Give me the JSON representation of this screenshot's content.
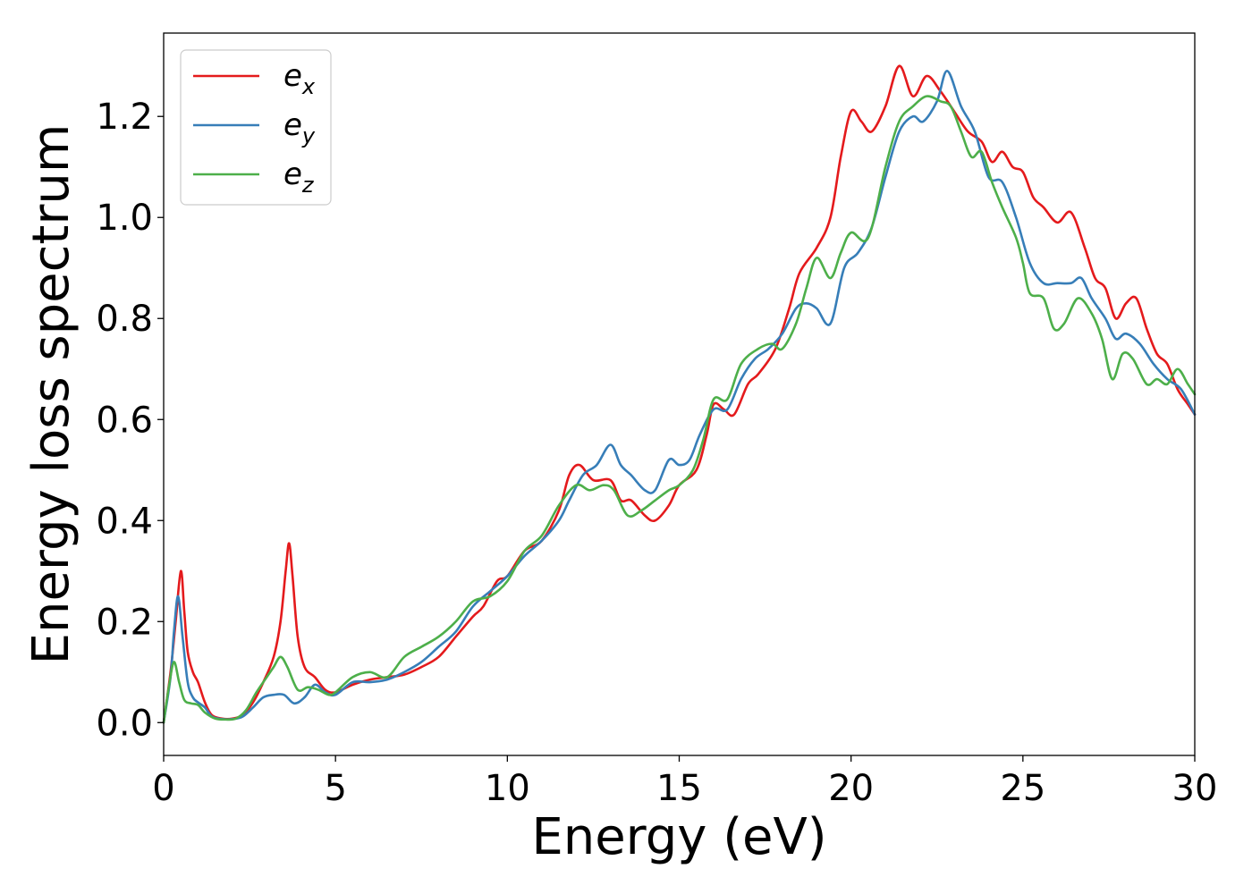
{
  "chart_data": {
    "type": "line",
    "title": "",
    "xlabel": "Energy (eV)",
    "ylabel": "Energy loss spectrum",
    "xlim": [
      0,
      30
    ],
    "ylim": [
      -0.065,
      1.365
    ],
    "xticks": [
      0,
      5,
      10,
      15,
      20,
      25,
      30
    ],
    "xtick_labels": [
      "0",
      "5",
      "10",
      "15",
      "20",
      "25",
      "30"
    ],
    "yticks": [
      0.0,
      0.2,
      0.4,
      0.6,
      0.8,
      1.0,
      1.2
    ],
    "ytick_labels": [
      "0.0",
      "0.2",
      "0.4",
      "0.6",
      "0.8",
      "1.0",
      "1.2"
    ],
    "grid": false,
    "legend_position": "top-left",
    "series": [
      {
        "name": "e_x",
        "label_base": "e",
        "label_sub": "x",
        "color": "#e41a1c",
        "points": [
          [
            0,
            0.0
          ],
          [
            0.2,
            0.1
          ],
          [
            0.35,
            0.2
          ],
          [
            0.5,
            0.3
          ],
          [
            0.6,
            0.22
          ],
          [
            0.7,
            0.14
          ],
          [
            0.85,
            0.1
          ],
          [
            1.0,
            0.08
          ],
          [
            1.2,
            0.04
          ],
          [
            1.4,
            0.015
          ],
          [
            1.7,
            0.008
          ],
          [
            2.0,
            0.008
          ],
          [
            2.3,
            0.015
          ],
          [
            2.6,
            0.04
          ],
          [
            2.9,
            0.08
          ],
          [
            3.2,
            0.13
          ],
          [
            3.4,
            0.2
          ],
          [
            3.55,
            0.3
          ],
          [
            3.65,
            0.355
          ],
          [
            3.75,
            0.29
          ],
          [
            3.9,
            0.17
          ],
          [
            4.1,
            0.11
          ],
          [
            4.4,
            0.09
          ],
          [
            4.7,
            0.065
          ],
          [
            5.0,
            0.06
          ],
          [
            5.5,
            0.075
          ],
          [
            6.0,
            0.085
          ],
          [
            6.5,
            0.09
          ],
          [
            7.0,
            0.095
          ],
          [
            7.5,
            0.11
          ],
          [
            8.0,
            0.13
          ],
          [
            8.5,
            0.17
          ],
          [
            9.0,
            0.21
          ],
          [
            9.3,
            0.23
          ],
          [
            9.7,
            0.28
          ],
          [
            10.0,
            0.29
          ],
          [
            10.5,
            0.34
          ],
          [
            11.0,
            0.36
          ],
          [
            11.5,
            0.42
          ],
          [
            11.8,
            0.49
          ],
          [
            12.1,
            0.51
          ],
          [
            12.5,
            0.48
          ],
          [
            13.0,
            0.48
          ],
          [
            13.3,
            0.44
          ],
          [
            13.6,
            0.44
          ],
          [
            14.0,
            0.41
          ],
          [
            14.3,
            0.4
          ],
          [
            14.7,
            0.43
          ],
          [
            15.0,
            0.47
          ],
          [
            15.5,
            0.5
          ],
          [
            15.8,
            0.57
          ],
          [
            16.0,
            0.63
          ],
          [
            16.3,
            0.62
          ],
          [
            16.6,
            0.61
          ],
          [
            17.0,
            0.67
          ],
          [
            17.3,
            0.69
          ],
          [
            17.8,
            0.74
          ],
          [
            18.2,
            0.82
          ],
          [
            18.5,
            0.89
          ],
          [
            19.0,
            0.94
          ],
          [
            19.4,
            1.0
          ],
          [
            19.7,
            1.12
          ],
          [
            20.0,
            1.21
          ],
          [
            20.3,
            1.19
          ],
          [
            20.6,
            1.17
          ],
          [
            21.0,
            1.22
          ],
          [
            21.4,
            1.3
          ],
          [
            21.8,
            1.24
          ],
          [
            22.2,
            1.28
          ],
          [
            22.6,
            1.25
          ],
          [
            23.0,
            1.21
          ],
          [
            23.4,
            1.17
          ],
          [
            23.8,
            1.15
          ],
          [
            24.1,
            1.11
          ],
          [
            24.4,
            1.13
          ],
          [
            24.7,
            1.1
          ],
          [
            25.0,
            1.09
          ],
          [
            25.3,
            1.04
          ],
          [
            25.6,
            1.02
          ],
          [
            26.0,
            0.99
          ],
          [
            26.4,
            1.01
          ],
          [
            26.8,
            0.94
          ],
          [
            27.1,
            0.88
          ],
          [
            27.4,
            0.86
          ],
          [
            27.7,
            0.8
          ],
          [
            28.0,
            0.83
          ],
          [
            28.3,
            0.84
          ],
          [
            28.6,
            0.78
          ],
          [
            28.9,
            0.73
          ],
          [
            29.2,
            0.71
          ],
          [
            29.5,
            0.66
          ],
          [
            29.8,
            0.63
          ],
          [
            30.0,
            0.61
          ]
        ]
      },
      {
        "name": "e_y",
        "label_base": "e",
        "label_sub": "y",
        "color": "#377eb8",
        "points": [
          [
            0,
            0.0
          ],
          [
            0.2,
            0.09
          ],
          [
            0.3,
            0.18
          ],
          [
            0.42,
            0.25
          ],
          [
            0.55,
            0.17
          ],
          [
            0.7,
            0.08
          ],
          [
            0.85,
            0.05
          ],
          [
            1.0,
            0.04
          ],
          [
            1.2,
            0.03
          ],
          [
            1.4,
            0.012
          ],
          [
            1.7,
            0.007
          ],
          [
            2.0,
            0.007
          ],
          [
            2.3,
            0.012
          ],
          [
            2.6,
            0.03
          ],
          [
            2.9,
            0.05
          ],
          [
            3.2,
            0.055
          ],
          [
            3.5,
            0.055
          ],
          [
            3.8,
            0.038
          ],
          [
            4.1,
            0.05
          ],
          [
            4.4,
            0.075
          ],
          [
            4.7,
            0.06
          ],
          [
            5.0,
            0.055
          ],
          [
            5.5,
            0.08
          ],
          [
            6.0,
            0.08
          ],
          [
            6.5,
            0.085
          ],
          [
            7.0,
            0.1
          ],
          [
            7.5,
            0.12
          ],
          [
            8.0,
            0.15
          ],
          [
            8.5,
            0.18
          ],
          [
            9.0,
            0.23
          ],
          [
            9.5,
            0.26
          ],
          [
            10.0,
            0.29
          ],
          [
            10.5,
            0.33
          ],
          [
            11.0,
            0.36
          ],
          [
            11.5,
            0.4
          ],
          [
            11.8,
            0.44
          ],
          [
            12.2,
            0.49
          ],
          [
            12.6,
            0.51
          ],
          [
            13.0,
            0.55
          ],
          [
            13.3,
            0.51
          ],
          [
            13.6,
            0.49
          ],
          [
            14.0,
            0.46
          ],
          [
            14.3,
            0.46
          ],
          [
            14.7,
            0.52
          ],
          [
            15.0,
            0.51
          ],
          [
            15.3,
            0.52
          ],
          [
            15.6,
            0.57
          ],
          [
            16.0,
            0.62
          ],
          [
            16.4,
            0.62
          ],
          [
            16.8,
            0.68
          ],
          [
            17.2,
            0.72
          ],
          [
            17.6,
            0.74
          ],
          [
            18.0,
            0.77
          ],
          [
            18.4,
            0.82
          ],
          [
            18.7,
            0.83
          ],
          [
            19.0,
            0.82
          ],
          [
            19.4,
            0.79
          ],
          [
            19.8,
            0.9
          ],
          [
            20.2,
            0.93
          ],
          [
            20.6,
            0.98
          ],
          [
            21.0,
            1.08
          ],
          [
            21.4,
            1.17
          ],
          [
            21.8,
            1.2
          ],
          [
            22.1,
            1.19
          ],
          [
            22.5,
            1.23
          ],
          [
            22.8,
            1.29
          ],
          [
            23.2,
            1.22
          ],
          [
            23.6,
            1.17
          ],
          [
            24.0,
            1.08
          ],
          [
            24.4,
            1.07
          ],
          [
            24.8,
            1.0
          ],
          [
            25.2,
            0.91
          ],
          [
            25.6,
            0.87
          ],
          [
            26.0,
            0.87
          ],
          [
            26.4,
            0.87
          ],
          [
            26.7,
            0.88
          ],
          [
            27.0,
            0.84
          ],
          [
            27.4,
            0.8
          ],
          [
            27.7,
            0.76
          ],
          [
            28.0,
            0.77
          ],
          [
            28.4,
            0.75
          ],
          [
            28.8,
            0.71
          ],
          [
            29.2,
            0.68
          ],
          [
            29.6,
            0.66
          ],
          [
            30.0,
            0.61
          ]
        ]
      },
      {
        "name": "e_z",
        "label_base": "e",
        "label_sub": "z",
        "color": "#4daf4a",
        "points": [
          [
            0,
            0.0
          ],
          [
            0.15,
            0.07
          ],
          [
            0.3,
            0.12
          ],
          [
            0.45,
            0.08
          ],
          [
            0.6,
            0.045
          ],
          [
            0.8,
            0.038
          ],
          [
            1.0,
            0.035
          ],
          [
            1.2,
            0.02
          ],
          [
            1.5,
            0.008
          ],
          [
            1.8,
            0.006
          ],
          [
            2.1,
            0.008
          ],
          [
            2.4,
            0.025
          ],
          [
            2.7,
            0.06
          ],
          [
            3.0,
            0.09
          ],
          [
            3.2,
            0.11
          ],
          [
            3.4,
            0.13
          ],
          [
            3.6,
            0.11
          ],
          [
            3.9,
            0.065
          ],
          [
            4.2,
            0.07
          ],
          [
            4.5,
            0.065
          ],
          [
            4.8,
            0.055
          ],
          [
            5.0,
            0.06
          ],
          [
            5.5,
            0.09
          ],
          [
            6.0,
            0.1
          ],
          [
            6.5,
            0.09
          ],
          [
            7.0,
            0.13
          ],
          [
            7.5,
            0.15
          ],
          [
            8.0,
            0.17
          ],
          [
            8.5,
            0.2
          ],
          [
            9.0,
            0.24
          ],
          [
            9.5,
            0.25
          ],
          [
            10.0,
            0.28
          ],
          [
            10.5,
            0.34
          ],
          [
            11.0,
            0.37
          ],
          [
            11.5,
            0.43
          ],
          [
            12.0,
            0.47
          ],
          [
            12.4,
            0.46
          ],
          [
            12.8,
            0.47
          ],
          [
            13.1,
            0.46
          ],
          [
            13.5,
            0.41
          ],
          [
            13.9,
            0.42
          ],
          [
            14.3,
            0.44
          ],
          [
            14.7,
            0.46
          ],
          [
            15.0,
            0.47
          ],
          [
            15.4,
            0.5
          ],
          [
            15.7,
            0.56
          ],
          [
            16.0,
            0.64
          ],
          [
            16.4,
            0.64
          ],
          [
            16.8,
            0.71
          ],
          [
            17.3,
            0.74
          ],
          [
            17.7,
            0.75
          ],
          [
            18.0,
            0.74
          ],
          [
            18.4,
            0.79
          ],
          [
            18.7,
            0.86
          ],
          [
            19.0,
            0.92
          ],
          [
            19.4,
            0.88
          ],
          [
            19.7,
            0.93
          ],
          [
            20.0,
            0.97
          ],
          [
            20.5,
            0.96
          ],
          [
            21.0,
            1.1
          ],
          [
            21.4,
            1.19
          ],
          [
            21.8,
            1.22
          ],
          [
            22.2,
            1.24
          ],
          [
            22.6,
            1.23
          ],
          [
            22.9,
            1.22
          ],
          [
            23.2,
            1.17
          ],
          [
            23.5,
            1.12
          ],
          [
            23.8,
            1.13
          ],
          [
            24.1,
            1.07
          ],
          [
            24.4,
            1.02
          ],
          [
            24.8,
            0.96
          ],
          [
            25.0,
            0.91
          ],
          [
            25.2,
            0.85
          ],
          [
            25.6,
            0.84
          ],
          [
            25.9,
            0.78
          ],
          [
            26.2,
            0.79
          ],
          [
            26.6,
            0.84
          ],
          [
            27.0,
            0.81
          ],
          [
            27.3,
            0.76
          ],
          [
            27.6,
            0.68
          ],
          [
            27.9,
            0.73
          ],
          [
            28.2,
            0.72
          ],
          [
            28.6,
            0.67
          ],
          [
            28.9,
            0.68
          ],
          [
            29.2,
            0.67
          ],
          [
            29.5,
            0.7
          ],
          [
            29.8,
            0.67
          ],
          [
            30.0,
            0.65
          ]
        ]
      }
    ]
  }
}
